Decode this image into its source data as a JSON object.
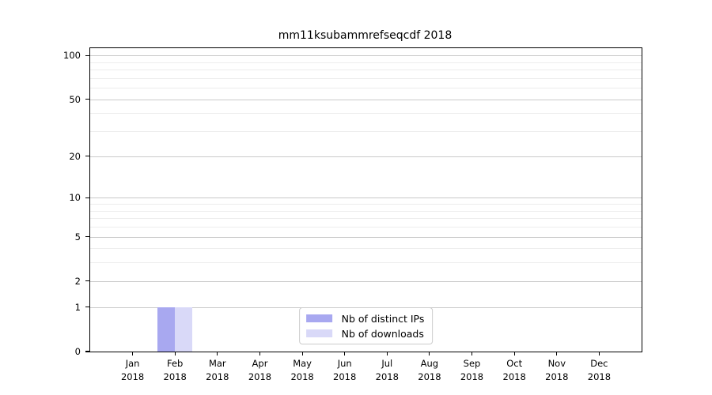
{
  "chart_data": {
    "type": "bar",
    "title": "mm11ksubammrefseqcdf 2018",
    "categories": [
      "Jan",
      "Feb",
      "Mar",
      "Apr",
      "May",
      "Jun",
      "Jul",
      "Aug",
      "Sep",
      "Oct",
      "Nov",
      "Dec"
    ],
    "category_year": "2018",
    "series": [
      {
        "name": "Nb of distinct IPs",
        "color": "#a8a8f0",
        "values": [
          0,
          1,
          0,
          0,
          0,
          0,
          0,
          0,
          0,
          0,
          0,
          0
        ]
      },
      {
        "name": "Nb of downloads",
        "color": "#d9d9f8",
        "values": [
          0,
          1,
          0,
          0,
          0,
          0,
          0,
          0,
          0,
          0,
          0,
          0
        ]
      }
    ],
    "y_ticks": [
      0,
      1,
      2,
      5,
      10,
      20,
      50,
      100
    ],
    "y_minor_ticks": [
      3,
      4,
      6,
      7,
      8,
      9,
      30,
      40,
      60,
      70,
      80,
      90
    ],
    "y_scale": "log1p",
    "ylim": [
      0,
      112
    ],
    "grid": "horizontal, major and minor",
    "legend": {
      "position": "lower center",
      "entries": [
        "Nb of distinct IPs",
        "Nb of downloads"
      ]
    }
  }
}
